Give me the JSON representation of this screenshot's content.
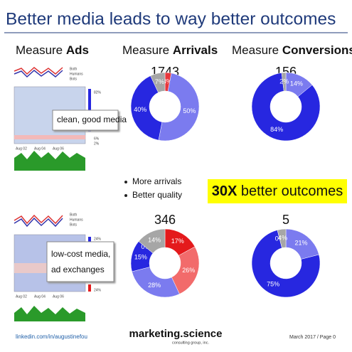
{
  "title": "Better media leads to way better outcomes",
  "column_headers": [
    {
      "prefix": "Measure ",
      "bold": "Ads"
    },
    {
      "prefix": "Measure ",
      "bold": "Arrivals"
    },
    {
      "prefix": "Measure ",
      "bold": "Conversions"
    }
  ],
  "thumbnails": [
    {
      "legend": [
        "Both",
        "Humans",
        "Bots"
      ],
      "labels": [
        "82%",
        "6%",
        "2%"
      ],
      "dates": [
        "Aug 02",
        "Aug 04",
        "Aug 06"
      ]
    },
    {
      "legend": [
        "Both",
        "Humans",
        "Bots"
      ],
      "labels": [
        "24%",
        "24%"
      ],
      "dates": [
        "Aug 02",
        "Aug 04",
        "Aug 06"
      ]
    }
  ],
  "callouts": [
    [
      "clean, good media"
    ],
    [
      "low-cost media,",
      "ad exchanges"
    ]
  ],
  "bullets": [
    "More arrivals",
    "Better quality"
  ],
  "highlight": {
    "bold": "30X",
    "rest": " better outcomes"
  },
  "footer": {
    "left": "linkedin.com/in/augustinefou",
    "brand": "marketing.science",
    "brand_sub": "consulting group, inc.",
    "right": "March 2017 / Page 0"
  },
  "chart_data": [
    {
      "type": "donut",
      "total": 1743,
      "values": [
        3,
        50,
        40,
        7
      ],
      "value_labels": [
        "3%",
        "50%",
        "40%",
        "7%"
      ],
      "colors": [
        "#e8383d",
        "#7b7bef",
        "#2727e0",
        "#a6a6a6"
      ]
    },
    {
      "type": "donut",
      "total": 156,
      "values": [
        14,
        84,
        2
      ],
      "value_labels": [
        "14%",
        "84%",
        "2%"
      ],
      "colors": [
        "#7b7bef",
        "#2727e0",
        "#a6a6a6"
      ]
    },
    {
      "type": "donut",
      "total": 346,
      "values": [
        17,
        26,
        28,
        15,
        0,
        14
      ],
      "value_labels": [
        "17%",
        "26%",
        "28%",
        "15%",
        "0%",
        "14%"
      ],
      "colors": [
        "#e41a1c",
        "#f26b6b",
        "#7b7bef",
        "#2727e0",
        "#cccccc",
        "#a6a6a6"
      ]
    },
    {
      "type": "donut",
      "total": 5,
      "values": [
        21,
        75,
        0,
        4
      ],
      "value_labels": [
        "21%",
        "75%",
        "0%",
        "4%"
      ],
      "colors": [
        "#7b7bef",
        "#2727e0",
        "#cccccc",
        "#a6a6a6"
      ]
    }
  ]
}
